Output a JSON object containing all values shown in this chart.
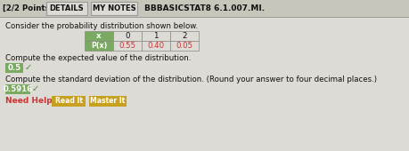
{
  "title_left": "[2/2 Points]",
  "tab_details": "DETAILS",
  "tab_mynotes": "MY NOTES",
  "course_code": "BBBASICSTAT8 6.1.007.MI.",
  "question_text": "Consider the probability distribution shown below.",
  "table_x_vals": [
    "0",
    "1",
    "2"
  ],
  "table_row_label": "P(x)",
  "table_values": [
    "0.55",
    "0.40",
    "0.05"
  ],
  "compute_expected": "Compute the expected value of the distribution.",
  "answer_expected": "0.5",
  "compute_stddev": "Compute the standard deviation of the distribution. (Round your answer to four decimal places.)",
  "answer_stddev": "0.5916",
  "need_help_label": "Need Help?",
  "btn1": "Read It",
  "btn2": "Master It",
  "bg_color": "#c8c5bb",
  "top_bar_bg": "#c8c5bb",
  "tab_bg": "#dddbd5",
  "tab_border": "#999999",
  "answer_box_color": "#7aaa60",
  "answer_text_color": "#ffffff",
  "table_header_bg": "#7aaa60",
  "table_cell_bg": "#dddbd5",
  "table_value_color": "#cc3333",
  "table_border": "#888888",
  "btn_bg": "#c8a020",
  "btn_text": "#ffffff",
  "need_help_color": "#cc3333",
  "sep_line_color": "#999999",
  "text_color": "#111111",
  "check_color": "#448833",
  "body_bg": "#dddbd5"
}
